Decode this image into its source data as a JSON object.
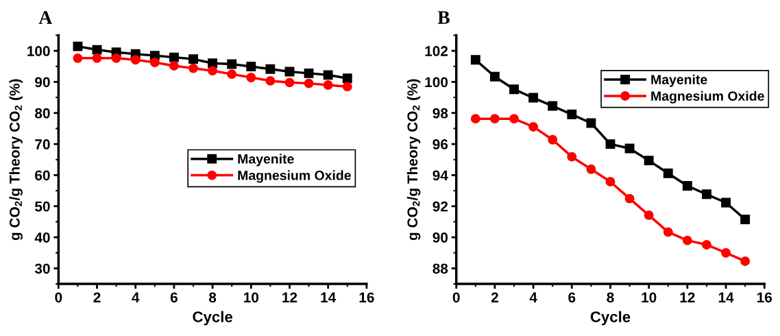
{
  "chart_data": [
    {
      "type": "line",
      "title": "A",
      "xlabel": "Cycle",
      "ylabel": "g CO$_{2}$/g Theory CO$_{2}$ (%)",
      "x": [
        1,
        2,
        3,
        4,
        5,
        6,
        7,
        8,
        9,
        10,
        11,
        12,
        13,
        14,
        15
      ],
      "xlim": [
        0,
        16
      ],
      "xticks": [
        0,
        2,
        4,
        6,
        8,
        10,
        12,
        14,
        16
      ],
      "ylim": [
        25,
        105
      ],
      "yticks": [
        30,
        40,
        50,
        60,
        70,
        80,
        90,
        100
      ],
      "legend": "right",
      "grid": false,
      "series": [
        {
          "name": "Mayenite",
          "color": "#000000",
          "marker": "square",
          "values": [
            101.42,
            100.34,
            99.52,
            98.98,
            98.45,
            97.91,
            97.35,
            96.0,
            95.72,
            94.94,
            94.12,
            93.31,
            92.77,
            92.23,
            91.15
          ]
        },
        {
          "name": "Magnesium Oxide",
          "color": "#ff0000",
          "marker": "circle",
          "values": [
            97.63,
            97.63,
            97.63,
            97.11,
            96.28,
            95.18,
            94.38,
            93.58,
            92.49,
            91.42,
            90.34,
            89.8,
            89.52,
            89.0,
            88.46
          ]
        }
      ]
    },
    {
      "type": "line",
      "title": "B",
      "xlabel": "Cycle",
      "ylabel": "g CO$_{2}$/g Theory CO$_{2}$ (%)",
      "x": [
        1,
        2,
        3,
        4,
        5,
        6,
        7,
        8,
        9,
        10,
        11,
        12,
        13,
        14,
        15
      ],
      "xlim": [
        0,
        16
      ],
      "xticks": [
        0,
        2,
        4,
        6,
        8,
        10,
        12,
        14,
        16
      ],
      "ylim": [
        87,
        103
      ],
      "yticks": [
        88,
        90,
        92,
        94,
        96,
        98,
        100,
        102
      ],
      "legend": "top right",
      "grid": false,
      "series": [
        {
          "name": "Mayenite",
          "color": "#000000",
          "marker": "square",
          "values": [
            101.42,
            100.34,
            99.52,
            98.98,
            98.45,
            97.91,
            97.35,
            96.0,
            95.72,
            94.94,
            94.12,
            93.31,
            92.77,
            92.23,
            91.15
          ]
        },
        {
          "name": "Magnesium Oxide",
          "color": "#ff0000",
          "marker": "circle",
          "values": [
            97.63,
            97.63,
            97.63,
            97.11,
            96.28,
            95.18,
            94.38,
            93.58,
            92.49,
            91.42,
            90.34,
            89.8,
            89.52,
            89.0,
            88.46
          ]
        }
      ]
    }
  ]
}
